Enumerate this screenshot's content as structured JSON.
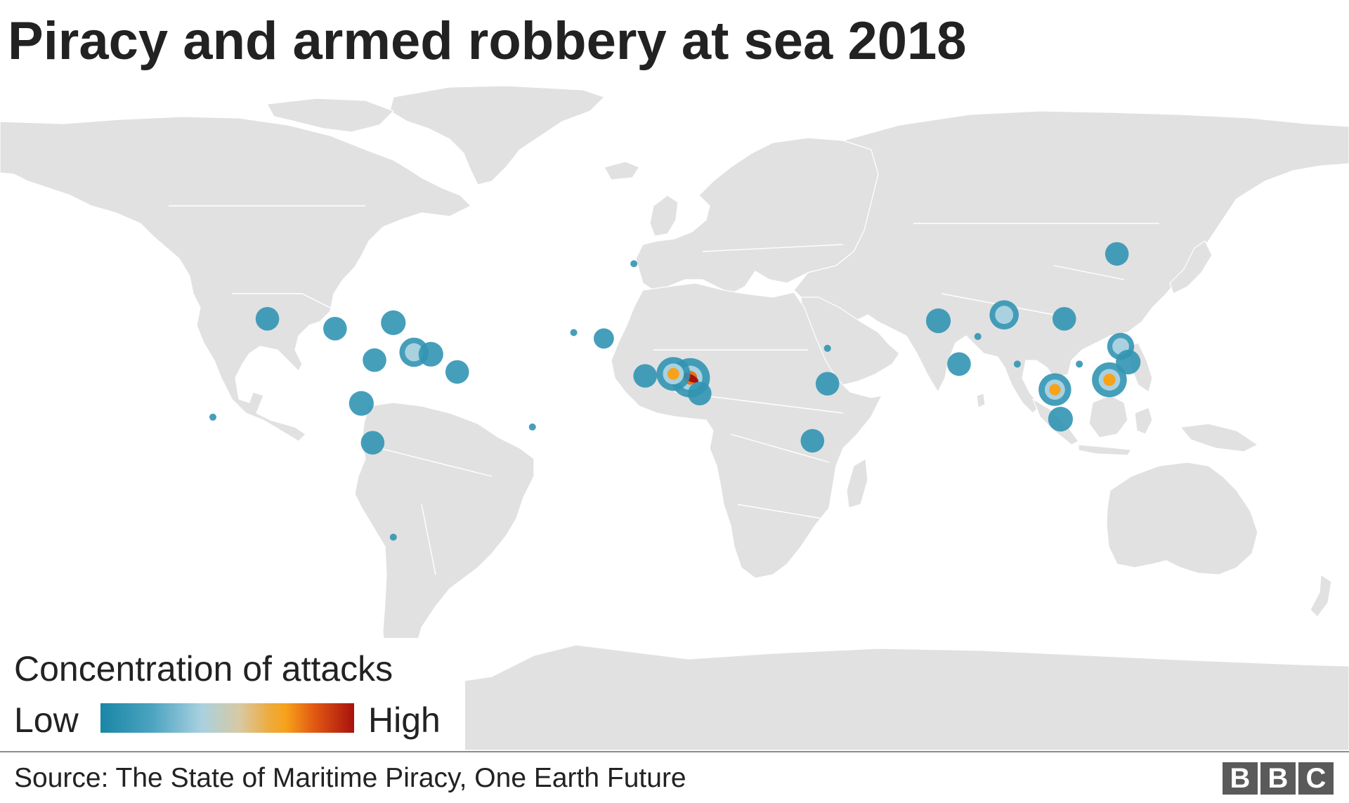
{
  "title": "Piracy and armed robbery at sea 2018",
  "legend": {
    "title": "Concentration of attacks",
    "low_label": "Low",
    "high_label": "High",
    "gradient_colors": [
      "#1a86a6",
      "#4aa3c0",
      "#a9d1e0",
      "#d8c9a2",
      "#f7a21b",
      "#e25a12",
      "#a8110d"
    ]
  },
  "source": "Source: The State of Maritime Piracy, One Earth Future",
  "logo": {
    "letters": [
      "B",
      "B",
      "C"
    ]
  },
  "colors": {
    "land": "#e1e1e1",
    "borders": "#ffffff",
    "low": "#2a8fb0",
    "mid": "#a9d1e0",
    "medium_high": "#f7a21b",
    "high": "#a8110d",
    "text": "#222222",
    "logo": "#5a5a5a"
  },
  "hotspots": [
    {
      "name": "Gulf of Guinea (Nigeria)",
      "lon": 7.0,
      "lat": 4.5,
      "level": 1.0
    },
    {
      "name": "Gulf of Guinea (Benin/Togo)",
      "lon": 2.5,
      "lat": 5.5,
      "level": 0.75
    },
    {
      "name": "Cameroon / Gabon coast",
      "lon": 9.5,
      "lat": 0.5,
      "level": 0.3
    },
    {
      "name": "Ghana / Cote d'Ivoire",
      "lon": -5.0,
      "lat": 5.0,
      "level": 0.3
    },
    {
      "name": "Senegal / Guinea",
      "lon": -16.0,
      "lat": 14.5,
      "level": 0.15
    },
    {
      "name": "Cape Verde",
      "lon": -24.0,
      "lat": 16.0,
      "level": 0.1
    },
    {
      "name": "Morocco",
      "lon": -8.0,
      "lat": 33.5,
      "level": 0.1
    },
    {
      "name": "Venezuela coast",
      "lon": -66.5,
      "lat": 11.0,
      "level": 0.55
    },
    {
      "name": "Caribbean (Haiti / Dominican Rep.)",
      "lon": -72.0,
      "lat": 18.5,
      "level": 0.35
    },
    {
      "name": "Caribbean (Venezuela east)",
      "lon": -62.0,
      "lat": 10.5,
      "level": 0.35
    },
    {
      "name": "Colombia / Panama",
      "lon": -77.0,
      "lat": 9.0,
      "level": 0.3
    },
    {
      "name": "Belize / Honduras",
      "lon": -87.5,
      "lat": 17.0,
      "level": 0.3
    },
    {
      "name": "Mexico Pacific",
      "lon": -105.5,
      "lat": 19.5,
      "level": 0.3
    },
    {
      "name": "Ecuador",
      "lon": -80.5,
      "lat": -2.0,
      "level": 0.35
    },
    {
      "name": "Peru",
      "lon": -77.5,
      "lat": -12.0,
      "level": 0.3
    },
    {
      "name": "Guyana / Suriname",
      "lon": -55.0,
      "lat": 6.0,
      "level": 0.3
    },
    {
      "name": "Brazil east",
      "lon": -35.0,
      "lat": -8.0,
      "level": 0.1
    },
    {
      "name": "Chile",
      "lon": -72.0,
      "lat": -36.0,
      "level": 0.1
    },
    {
      "name": "Pacific (Galapagos area)",
      "lon": -120.0,
      "lat": -5.5,
      "level": 0.1
    },
    {
      "name": "Somalia / Gulf of Aden",
      "lon": 43.5,
      "lat": 12.0,
      "level": 0.1
    },
    {
      "name": "Somalia east",
      "lon": 43.5,
      "lat": 3.0,
      "level": 0.3
    },
    {
      "name": "Mozambique",
      "lon": 39.5,
      "lat": -11.5,
      "level": 0.3
    },
    {
      "name": "India west",
      "lon": 73.0,
      "lat": 19.0,
      "level": 0.35
    },
    {
      "name": "India south",
      "lon": 78.5,
      "lat": 8.0,
      "level": 0.3
    },
    {
      "name": "Bangladesh",
      "lon": 90.5,
      "lat": 20.5,
      "level": 0.55
    },
    {
      "name": "Sri Lanka / Bay of Bengal",
      "lon": 83.5,
      "lat": 15.0,
      "level": 0.1
    },
    {
      "name": "Vietnam",
      "lon": 106.5,
      "lat": 19.5,
      "level": 0.3
    },
    {
      "name": "China east",
      "lon": 120.5,
      "lat": 36.0,
      "level": 0.3
    },
    {
      "name": "Malacca Strait (Singapore)",
      "lon": 104.0,
      "lat": 1.5,
      "level": 0.7
    },
    {
      "name": "Java Sea",
      "lon": 105.5,
      "lat": -6.0,
      "level": 0.35
    },
    {
      "name": "Sulu Sea / Borneo",
      "lon": 118.5,
      "lat": 4.0,
      "level": 0.8
    },
    {
      "name": "Philippines",
      "lon": 121.5,
      "lat": 12.5,
      "level": 0.45
    },
    {
      "name": "Philippines south",
      "lon": 123.5,
      "lat": 8.5,
      "level": 0.35
    },
    {
      "name": "Andaman Sea",
      "lon": 94.0,
      "lat": 8.0,
      "level": 0.1
    },
    {
      "name": "South China Sea",
      "lon": 110.5,
      "lat": 8.0,
      "level": 0.1
    }
  ]
}
